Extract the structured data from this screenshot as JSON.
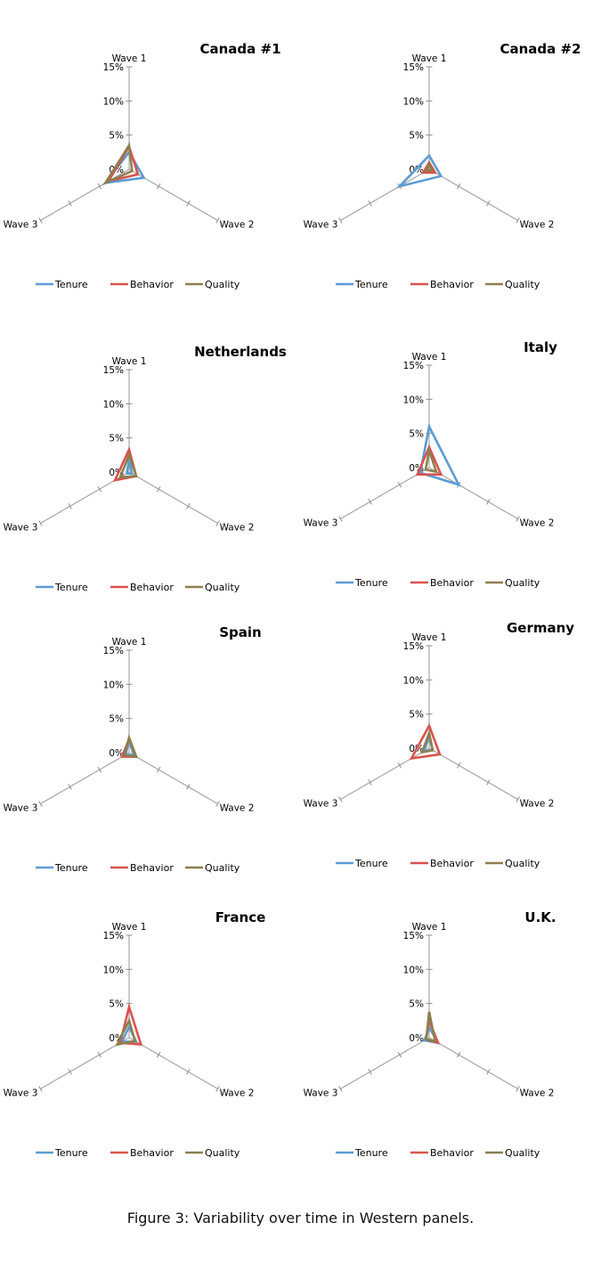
{
  "caption": "Figure 3: Variability over time in Western panels.",
  "colors": {
    "Tenure": "#5b9bd5",
    "Behavior": "#d9534f",
    "Quality": "#8c7f4d"
  },
  "chart_data": [
    {
      "type": "radar",
      "title": "Canada #1",
      "axes": [
        "Wave 1",
        "Wave 2",
        "Wave 3"
      ],
      "ticks": [
        "0%",
        "5%",
        "10%",
        "15%"
      ],
      "rmax": 15,
      "legend": "bottom",
      "series": [
        {
          "name": "Tenure",
          "values": [
            2.5,
            2.5,
            4.0
          ]
        },
        {
          "name": "Behavior",
          "values": [
            3.3,
            1.5,
            3.5
          ]
        },
        {
          "name": "Quality",
          "values": [
            3.5,
            0.5,
            4.0
          ]
        }
      ]
    },
    {
      "type": "radar",
      "title": "Canada #2",
      "axes": [
        "Wave 1",
        "Wave 2",
        "Wave 3"
      ],
      "ticks": [
        "0%",
        "5%",
        "10%",
        "15%"
      ],
      "rmax": 15,
      "legend": "bottom",
      "series": [
        {
          "name": "Tenure",
          "values": [
            2.0,
            2.0,
            5.0
          ]
        },
        {
          "name": "Behavior",
          "values": [
            1.0,
            1.0,
            1.0
          ]
        },
        {
          "name": "Quality",
          "values": [
            0.8,
            0.4,
            0.4
          ]
        }
      ]
    },
    {
      "type": "radar",
      "title": "Netherlands",
      "axes": [
        "Wave 1",
        "Wave 2",
        "Wave 3"
      ],
      "ticks": [
        "0%",
        "5%",
        "10%",
        "15%"
      ],
      "rmax": 15,
      "legend": "bottom",
      "series": [
        {
          "name": "Tenure",
          "values": [
            1.8,
            0.5,
            0.4
          ]
        },
        {
          "name": "Behavior",
          "values": [
            3.3,
            1.2,
            2.4
          ]
        },
        {
          "name": "Quality",
          "values": [
            2.5,
            1.2,
            1.5
          ]
        }
      ]
    },
    {
      "type": "radar",
      "title": "Italy",
      "axes": [
        "Wave 1",
        "Wave 2",
        "Wave 3"
      ],
      "ticks": [
        "0%",
        "5%",
        "10%",
        "15%"
      ],
      "rmax": 15,
      "legend": "bottom",
      "series": [
        {
          "name": "Tenure",
          "values": [
            6.0,
            5.0,
            1.5
          ]
        },
        {
          "name": "Behavior",
          "values": [
            3.0,
            2.0,
            2.0
          ]
        },
        {
          "name": "Quality",
          "values": [
            2.5,
            1.2,
            0.6
          ]
        }
      ]
    },
    {
      "type": "radar",
      "title": "Spain",
      "axes": [
        "Wave 1",
        "Wave 2",
        "Wave 3"
      ],
      "ticks": [
        "0%",
        "5%",
        "10%",
        "15%"
      ],
      "rmax": 15,
      "legend": "bottom",
      "series": [
        {
          "name": "Tenure",
          "values": [
            1.8,
            0.8,
            0.6
          ]
        },
        {
          "name": "Behavior",
          "values": [
            2.0,
            1.2,
            1.2
          ]
        },
        {
          "name": "Quality",
          "values": [
            2.2,
            1.2,
            0.8
          ]
        }
      ]
    },
    {
      "type": "radar",
      "title": "Germany",
      "axes": [
        "Wave 1",
        "Wave 2",
        "Wave 3"
      ],
      "ticks": [
        "0%",
        "5%",
        "10%",
        "15%"
      ],
      "rmax": 15,
      "legend": "bottom",
      "series": [
        {
          "name": "Tenure",
          "values": [
            1.8,
            0.6,
            0.8
          ]
        },
        {
          "name": "Behavior",
          "values": [
            3.3,
            1.8,
            3.0
          ]
        },
        {
          "name": "Quality",
          "values": [
            2.2,
            0.6,
            1.2
          ]
        }
      ]
    },
    {
      "type": "radar",
      "title": "France",
      "axes": [
        "Wave 1",
        "Wave 2",
        "Wave 3"
      ],
      "ticks": [
        "0%",
        "5%",
        "10%",
        "15%"
      ],
      "rmax": 15,
      "legend": "bottom",
      "series": [
        {
          "name": "Tenure",
          "values": [
            1.6,
            1.2,
            1.2
          ]
        },
        {
          "name": "Behavior",
          "values": [
            4.5,
            2.0,
            1.5
          ]
        },
        {
          "name": "Quality",
          "values": [
            2.5,
            1.0,
            2.0
          ]
        }
      ]
    },
    {
      "type": "radar",
      "title": "U.K.",
      "axes": [
        "Wave 1",
        "Wave 2",
        "Wave 3"
      ],
      "ticks": [
        "0%",
        "5%",
        "10%",
        "15%"
      ],
      "rmax": 15,
      "legend": "bottom",
      "series": [
        {
          "name": "Tenure",
          "values": [
            1.5,
            1.5,
            0.8
          ]
        },
        {
          "name": "Behavior",
          "values": [
            2.5,
            1.5,
            0.5
          ]
        },
        {
          "name": "Quality",
          "values": [
            3.8,
            1.0,
            0.5
          ]
        }
      ]
    }
  ]
}
